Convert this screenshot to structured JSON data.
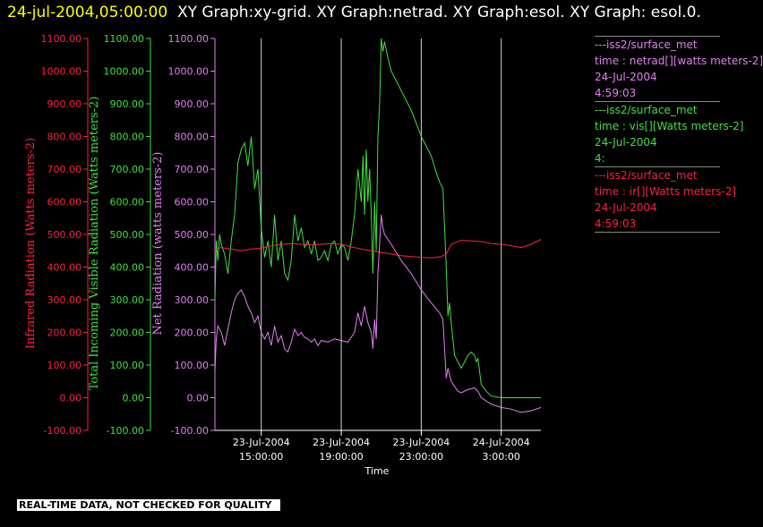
{
  "header": {
    "timestamp": "24-jul-2004,05:00:00",
    "titles": "XY Graph:xy-grid.  XY Graph:netrad.  XY Graph:esol.  XY Graph: esol.0."
  },
  "disclaimer": "REAL-TIME DATA, NOT CHECKED FOR QUALITY",
  "legend": [
    {
      "source": "---iss2/surface_met",
      "name": "time : netrad[][watts meters-2]",
      "date": "24-Jul-2004",
      "time": "4:59:03",
      "color": "#e080f0"
    },
    {
      "source": "---iss2/surface_met",
      "name": "time : vis[][Watts meters-2]",
      "date": "24-Jul-2004",
      "time": "4:",
      "color": "#40e040"
    },
    {
      "source": "---iss2/surface_met",
      "name": "time : ir[][Watts meters-2]",
      "date": "24-Jul-2004",
      "time": "4:59:03",
      "color": "#ff2040"
    }
  ],
  "chart_data": {
    "type": "line",
    "xlabel": "Time",
    "x_range": [
      "23-Jul-2004 12:41",
      "24-Jul-2004 04:59"
    ],
    "x_ticks": [
      {
        "date": "23-Jul-2004",
        "time": "15:00:00",
        "t": "23-Jul-2004 15:00"
      },
      {
        "date": "23-Jul-2004",
        "time": "19:00:00",
        "t": "23-Jul-2004 19:00"
      },
      {
        "date": "23-Jul-2004",
        "time": "23:00:00",
        "t": "23-Jul-2004 23:00"
      },
      {
        "date": "24-Jul-2004",
        "time": "3:00:00",
        "t": "24-Jul-2004 03:00"
      }
    ],
    "y_axes": [
      {
        "id": "ir",
        "label": "Infrared Radiation (Watts meters-2)",
        "range": [
          -100,
          1100
        ],
        "ticks": [
          "-100.00",
          "0.00",
          "100.00",
          "200.00",
          "300.00",
          "400.00",
          "500.00",
          "600.00",
          "700.00",
          "800.00",
          "900.00",
          "1000.00",
          "1100.00"
        ],
        "color": "#ff2040"
      },
      {
        "id": "vis",
        "label": "Total Incoming Visible Radiation (Watts meters-2)",
        "range": [
          -100,
          1100
        ],
        "ticks": [
          "-100.00",
          "0.00",
          "100.00",
          "200.00",
          "300.00",
          "400.00",
          "500.00",
          "600.00",
          "700.00",
          "800.00",
          "900.00",
          "1000.00",
          "1100.00"
        ],
        "color": "#40e040"
      },
      {
        "id": "netrad",
        "label": "Net Radiation (watts meters-2)",
        "range": [
          -100,
          1100
        ],
        "ticks": [
          "-100.00",
          "0.00",
          "100.00",
          "200.00",
          "300.00",
          "400.00",
          "500.00",
          "600.00",
          "700.00",
          "800.00",
          "900.00",
          "1000.00",
          "1100.00"
        ],
        "color": "#e080f0"
      }
    ],
    "grid": "vertical at x ticks",
    "series": [
      {
        "axis": "vis",
        "color": "#40e040",
        "points": [
          [
            "23-Jul-2004 12:41",
            300
          ],
          [
            "23-Jul-2004 12:45",
            480
          ],
          [
            "23-Jul-2004 12:50",
            420
          ],
          [
            "23-Jul-2004 12:55",
            500
          ],
          [
            "23-Jul-2004 13:00",
            470
          ],
          [
            "23-Jul-2004 13:10",
            440
          ],
          [
            "23-Jul-2004 13:20",
            380
          ],
          [
            "23-Jul-2004 13:30",
            480
          ],
          [
            "23-Jul-2004 13:40",
            560
          ],
          [
            "23-Jul-2004 13:50",
            720
          ],
          [
            "23-Jul-2004 14:00",
            760
          ],
          [
            "23-Jul-2004 14:10",
            780
          ],
          [
            "23-Jul-2004 14:20",
            710
          ],
          [
            "23-Jul-2004 14:30",
            800
          ],
          [
            "23-Jul-2004 14:40",
            640
          ],
          [
            "23-Jul-2004 14:50",
            700
          ],
          [
            "23-Jul-2004 15:00",
            520
          ],
          [
            "23-Jul-2004 15:10",
            430
          ],
          [
            "23-Jul-2004 15:20",
            480
          ],
          [
            "23-Jul-2004 15:30",
            400
          ],
          [
            "23-Jul-2004 15:40",
            560
          ],
          [
            "23-Jul-2004 15:50",
            420
          ],
          [
            "23-Jul-2004 16:00",
            480
          ],
          [
            "23-Jul-2004 16:10",
            380
          ],
          [
            "23-Jul-2004 16:20",
            360
          ],
          [
            "23-Jul-2004 16:30",
            420
          ],
          [
            "23-Jul-2004 16:40",
            560
          ],
          [
            "23-Jul-2004 16:50",
            480
          ],
          [
            "23-Jul-2004 17:00",
            520
          ],
          [
            "23-Jul-2004 17:10",
            460
          ],
          [
            "23-Jul-2004 17:20",
            480
          ],
          [
            "23-Jul-2004 17:30",
            440
          ],
          [
            "23-Jul-2004 17:40",
            480
          ],
          [
            "23-Jul-2004 17:50",
            420
          ],
          [
            "23-Jul-2004 18:00",
            430
          ],
          [
            "23-Jul-2004 18:10",
            450
          ],
          [
            "23-Jul-2004 18:20",
            420
          ],
          [
            "23-Jul-2004 18:30",
            470
          ],
          [
            "23-Jul-2004 18:40",
            480
          ],
          [
            "23-Jul-2004 18:50",
            440
          ],
          [
            "23-Jul-2004 19:00",
            470
          ],
          [
            "23-Jul-2004 19:10",
            460
          ],
          [
            "23-Jul-2004 19:20",
            420
          ],
          [
            "23-Jul-2004 19:30",
            480
          ],
          [
            "23-Jul-2004 19:40",
            560
          ],
          [
            "23-Jul-2004 19:50",
            700
          ],
          [
            "23-Jul-2004 20:00",
            600
          ],
          [
            "23-Jul-2004 20:05",
            740
          ],
          [
            "23-Jul-2004 20:10",
            560
          ],
          [
            "23-Jul-2004 20:15",
            760
          ],
          [
            "23-Jul-2004 20:20",
            600
          ],
          [
            "23-Jul-2004 20:25",
            700
          ],
          [
            "23-Jul-2004 20:30",
            560
          ],
          [
            "23-Jul-2004 20:35",
            380
          ],
          [
            "23-Jul-2004 20:40",
            600
          ],
          [
            "23-Jul-2004 20:45",
            450
          ],
          [
            "23-Jul-2004 20:50",
            800
          ],
          [
            "23-Jul-2004 20:55",
            900
          ],
          [
            "23-Jul-2004 21:00",
            1100
          ],
          [
            "23-Jul-2004 21:05",
            1060
          ],
          [
            "23-Jul-2004 21:10",
            1090
          ],
          [
            "23-Jul-2004 21:20",
            1040
          ],
          [
            "23-Jul-2004 21:30",
            1000
          ],
          [
            "23-Jul-2004 21:40",
            980
          ],
          [
            "23-Jul-2004 22:00",
            940
          ],
          [
            "23-Jul-2004 22:30",
            880
          ],
          [
            "23-Jul-2004 23:00",
            800
          ],
          [
            "23-Jul-2004 23:30",
            740
          ],
          [
            "23-Jul-2004 23:45",
            690
          ],
          [
            "23-Jul-2004 23:55",
            660
          ],
          [
            "24-Jul-2004 00:05",
            640
          ],
          [
            "24-Jul-2004 00:15",
            400
          ],
          [
            "24-Jul-2004 00:20",
            250
          ],
          [
            "24-Jul-2004 00:25",
            290
          ],
          [
            "24-Jul-2004 00:30",
            230
          ],
          [
            "24-Jul-2004 00:40",
            130
          ],
          [
            "24-Jul-2004 00:50",
            110
          ],
          [
            "24-Jul-2004 01:00",
            90
          ],
          [
            "24-Jul-2004 01:10",
            110
          ],
          [
            "24-Jul-2004 01:20",
            130
          ],
          [
            "24-Jul-2004 01:30",
            140
          ],
          [
            "24-Jul-2004 01:40",
            130
          ],
          [
            "24-Jul-2004 01:45",
            110
          ],
          [
            "24-Jul-2004 01:50",
            120
          ],
          [
            "24-Jul-2004 02:00",
            40
          ],
          [
            "24-Jul-2004 02:15",
            20
          ],
          [
            "24-Jul-2004 02:30",
            5
          ],
          [
            "24-Jul-2004 03:00",
            0
          ],
          [
            "24-Jul-2004 04:00",
            0
          ],
          [
            "24-Jul-2004 04:59",
            0
          ]
        ]
      },
      {
        "axis": "ir",
        "color": "#ff2040",
        "points": [
          [
            "23-Jul-2004 12:41",
            455
          ],
          [
            "23-Jul-2004 13:00",
            460
          ],
          [
            "23-Jul-2004 13:30",
            455
          ],
          [
            "23-Jul-2004 14:00",
            450
          ],
          [
            "23-Jul-2004 14:30",
            455
          ],
          [
            "23-Jul-2004 15:00",
            458
          ],
          [
            "23-Jul-2004 15:30",
            465
          ],
          [
            "23-Jul-2004 16:00",
            470
          ],
          [
            "23-Jul-2004 16:30",
            472
          ],
          [
            "23-Jul-2004 17:00",
            470
          ],
          [
            "23-Jul-2004 17:30",
            468
          ],
          [
            "23-Jul-2004 18:00",
            470
          ],
          [
            "23-Jul-2004 18:30",
            472
          ],
          [
            "23-Jul-2004 19:00",
            470
          ],
          [
            "23-Jul-2004 19:30",
            462
          ],
          [
            "23-Jul-2004 20:00",
            455
          ],
          [
            "23-Jul-2004 20:30",
            450
          ],
          [
            "23-Jul-2004 21:00",
            445
          ],
          [
            "23-Jul-2004 21:30",
            440
          ],
          [
            "23-Jul-2004 22:00",
            435
          ],
          [
            "23-Jul-2004 22:30",
            432
          ],
          [
            "23-Jul-2004 23:00",
            430
          ],
          [
            "23-Jul-2004 23:30",
            428
          ],
          [
            "24-Jul-2004 00:00",
            432
          ],
          [
            "24-Jul-2004 00:15",
            440
          ],
          [
            "24-Jul-2004 00:30",
            470
          ],
          [
            "24-Jul-2004 01:00",
            482
          ],
          [
            "24-Jul-2004 01:30",
            480
          ],
          [
            "24-Jul-2004 02:00",
            478
          ],
          [
            "24-Jul-2004 02:30",
            472
          ],
          [
            "24-Jul-2004 03:00",
            470
          ],
          [
            "24-Jul-2004 03:30",
            465
          ],
          [
            "24-Jul-2004 04:00",
            460
          ],
          [
            "24-Jul-2004 04:30",
            470
          ],
          [
            "24-Jul-2004 04:59",
            485
          ]
        ]
      },
      {
        "axis": "netrad",
        "color": "#e080f0",
        "points": [
          [
            "23-Jul-2004 12:41",
            80
          ],
          [
            "23-Jul-2004 12:45",
            180
          ],
          [
            "23-Jul-2004 12:50",
            220
          ],
          [
            "23-Jul-2004 13:00",
            200
          ],
          [
            "23-Jul-2004 13:10",
            160
          ],
          [
            "23-Jul-2004 13:20",
            210
          ],
          [
            "23-Jul-2004 13:30",
            260
          ],
          [
            "23-Jul-2004 13:40",
            300
          ],
          [
            "23-Jul-2004 13:50",
            320
          ],
          [
            "23-Jul-2004 14:00",
            330
          ],
          [
            "23-Jul-2004 14:10",
            310
          ],
          [
            "23-Jul-2004 14:20",
            280
          ],
          [
            "23-Jul-2004 14:30",
            260
          ],
          [
            "23-Jul-2004 14:40",
            230
          ],
          [
            "23-Jul-2004 14:50",
            250
          ],
          [
            "23-Jul-2004 15:00",
            200
          ],
          [
            "23-Jul-2004 15:10",
            180
          ],
          [
            "23-Jul-2004 15:20",
            200
          ],
          [
            "23-Jul-2004 15:30",
            160
          ],
          [
            "23-Jul-2004 15:40",
            220
          ],
          [
            "23-Jul-2004 15:50",
            170
          ],
          [
            "23-Jul-2004 16:00",
            190
          ],
          [
            "23-Jul-2004 16:10",
            150
          ],
          [
            "23-Jul-2004 16:20",
            140
          ],
          [
            "23-Jul-2004 16:30",
            170
          ],
          [
            "23-Jul-2004 16:40",
            210
          ],
          [
            "23-Jul-2004 16:50",
            190
          ],
          [
            "23-Jul-2004 17:00",
            200
          ],
          [
            "23-Jul-2004 17:10",
            185
          ],
          [
            "23-Jul-2004 17:20",
            180
          ],
          [
            "23-Jul-2004 17:30",
            170
          ],
          [
            "23-Jul-2004 17:40",
            180
          ],
          [
            "23-Jul-2004 17:50",
            160
          ],
          [
            "23-Jul-2004 18:00",
            175
          ],
          [
            "23-Jul-2004 18:20",
            170
          ],
          [
            "23-Jul-2004 18:40",
            180
          ],
          [
            "23-Jul-2004 19:00",
            175
          ],
          [
            "23-Jul-2004 19:20",
            170
          ],
          [
            "23-Jul-2004 19:40",
            200
          ],
          [
            "23-Jul-2004 19:50",
            260
          ],
          [
            "23-Jul-2004 20:00",
            220
          ],
          [
            "23-Jul-2004 20:10",
            280
          ],
          [
            "23-Jul-2004 20:20",
            230
          ],
          [
            "23-Jul-2004 20:30",
            200
          ],
          [
            "23-Jul-2004 20:35",
            150
          ],
          [
            "23-Jul-2004 20:40",
            240
          ],
          [
            "23-Jul-2004 20:45",
            180
          ],
          [
            "23-Jul-2004 20:50",
            380
          ],
          [
            "23-Jul-2004 21:00",
            560
          ],
          [
            "23-Jul-2004 21:05",
            520
          ],
          [
            "23-Jul-2004 21:10",
            500
          ],
          [
            "23-Jul-2004 21:30",
            470
          ],
          [
            "23-Jul-2004 22:00",
            420
          ],
          [
            "23-Jul-2004 22:30",
            380
          ],
          [
            "23-Jul-2004 23:00",
            330
          ],
          [
            "23-Jul-2004 23:30",
            290
          ],
          [
            "23-Jul-2004 23:55",
            260
          ],
          [
            "24-Jul-2004 00:05",
            240
          ],
          [
            "24-Jul-2004 00:15",
            60
          ],
          [
            "24-Jul-2004 00:20",
            90
          ],
          [
            "24-Jul-2004 00:30",
            50
          ],
          [
            "24-Jul-2004 00:50",
            20
          ],
          [
            "24-Jul-2004 01:00",
            15
          ],
          [
            "24-Jul-2004 01:20",
            25
          ],
          [
            "24-Jul-2004 01:40",
            30
          ],
          [
            "24-Jul-2004 01:50",
            20
          ],
          [
            "24-Jul-2004 02:00",
            0
          ],
          [
            "24-Jul-2004 02:30",
            -20
          ],
          [
            "24-Jul-2004 03:00",
            -30
          ],
          [
            "24-Jul-2004 03:30",
            -35
          ],
          [
            "24-Jul-2004 04:00",
            -45
          ],
          [
            "24-Jul-2004 04:30",
            -40
          ],
          [
            "24-Jul-2004 04:59",
            -30
          ]
        ]
      }
    ]
  }
}
